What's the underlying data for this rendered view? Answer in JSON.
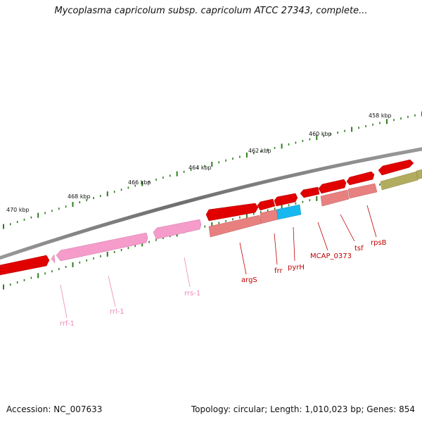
{
  "title": "Mycoplasma capricolum subsp. capricolum ATCC 27343, complete...",
  "footer": {
    "accession": "Accession: NC_007633",
    "summary": "Topology: circular; Length: 1,010,023 bp; Genes: 854"
  },
  "scale_labels": [
    "458 kbp",
    "460 kbp",
    "462 kbp",
    "464 kbp",
    "466 kbp",
    "468 kbp",
    "470 kbp"
  ],
  "gene_labels": [
    "rpsB",
    "tsf",
    "MCAP_0373",
    "pyrH",
    "frr",
    "argS",
    "rrs-1",
    "rrl-1",
    "rrf-1"
  ],
  "colors": {
    "backbone": "#8a8a8a",
    "scale_ticks": "#2e7d1e",
    "cds": "#e00000",
    "cds_shadow": "#e88080",
    "rrna": "#f59ccb",
    "highlight_gene": "#17b8f0",
    "other_gene": "#b2ad5e",
    "red_label": "#c00000",
    "pink_label": "#ee88bb"
  }
}
